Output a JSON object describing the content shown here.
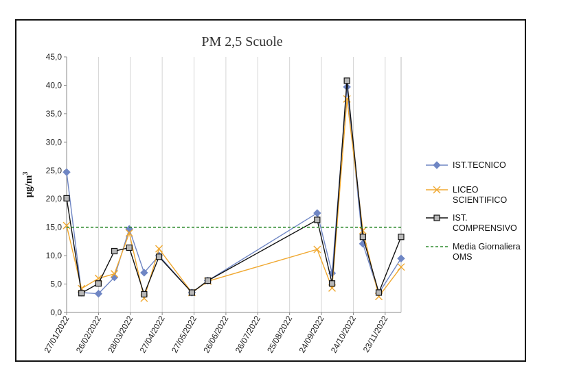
{
  "chart_data": {
    "type": "line",
    "title": "PM 2,5 Scuole",
    "ylabel": "μg/m³",
    "ylabel_main": "μg/m",
    "ylabel_sup": "3",
    "xlabel": "",
    "ylim": [
      0,
      45
    ],
    "y_ticks": [
      "0,0",
      "5,0",
      "10,0",
      "15,0",
      "20,0",
      "25,0",
      "30,0",
      "35,0",
      "40,0",
      "45,0"
    ],
    "x_ticks": [
      "27/01/2022",
      "26/02/2022",
      "28/03/2022",
      "27/04/2022",
      "27/05/2022",
      "26/06/2022",
      "26/07/2022",
      "25/08/2022",
      "24/09/2022",
      "24/10/2022",
      "23/11/2022"
    ],
    "x_range": [
      "2022-01-27",
      "2022-12-08"
    ],
    "grid": "vertical",
    "legend_position": "right",
    "series": [
      {
        "name": "IST.TECNICO",
        "color": "#6f86c4",
        "marker": "diamond",
        "points": [
          [
            "2022-01-27",
            24.7
          ],
          [
            "2022-02-10",
            3.5
          ],
          [
            "2022-02-26",
            3.3
          ],
          [
            "2022-03-13",
            6.2
          ],
          [
            "2022-03-27",
            14.7
          ],
          [
            "2022-04-10",
            7.0
          ],
          [
            "2022-04-24",
            10.0
          ],
          [
            "2022-05-25",
            3.5
          ],
          [
            "2022-06-09",
            5.6
          ],
          [
            "2022-09-20",
            17.5
          ],
          [
            "2022-10-04",
            6.9
          ],
          [
            "2022-10-18",
            39.7
          ],
          [
            "2022-11-02",
            12.1
          ],
          [
            "2022-11-17",
            3.4
          ],
          [
            "2022-12-08",
            9.5
          ]
        ]
      },
      {
        "name": "LICEO\nSCIENTIFICO",
        "color": "#f0a830",
        "marker": "x",
        "points": [
          [
            "2022-01-27",
            15.3
          ],
          [
            "2022-02-10",
            4.2
          ],
          [
            "2022-02-26",
            6.0
          ],
          [
            "2022-03-13",
            6.8
          ],
          [
            "2022-03-27",
            14.0
          ],
          [
            "2022-04-10",
            2.5
          ],
          [
            "2022-04-24",
            11.2
          ],
          [
            "2022-05-25",
            3.5
          ],
          [
            "2022-06-09",
            5.5
          ],
          [
            "2022-09-20",
            11.1
          ],
          [
            "2022-10-04",
            4.3
          ],
          [
            "2022-10-18",
            37.6
          ],
          [
            "2022-11-02",
            14.4
          ],
          [
            "2022-11-17",
            2.8
          ],
          [
            "2022-12-08",
            8.0
          ]
        ]
      },
      {
        "name": "IST.\nCOMPRENSIVO",
        "color": "#111111",
        "marker": "square",
        "points": [
          [
            "2022-01-27",
            20.1
          ],
          [
            "2022-02-10",
            3.4
          ],
          [
            "2022-02-26",
            5.1
          ],
          [
            "2022-03-13",
            10.8
          ],
          [
            "2022-03-27",
            11.4
          ],
          [
            "2022-04-10",
            3.2
          ],
          [
            "2022-04-24",
            9.8
          ],
          [
            "2022-05-25",
            3.5
          ],
          [
            "2022-06-09",
            5.6
          ],
          [
            "2022-09-20",
            16.3
          ],
          [
            "2022-10-04",
            5.1
          ],
          [
            "2022-10-18",
            40.8
          ],
          [
            "2022-11-02",
            13.3
          ],
          [
            "2022-11-17",
            3.5
          ],
          [
            "2022-12-08",
            13.3
          ]
        ]
      },
      {
        "name": "Media Giornaliera\nOMS",
        "color": "#2e8b2e",
        "marker": "none",
        "dashed": true,
        "constant": 15.0
      }
    ]
  }
}
